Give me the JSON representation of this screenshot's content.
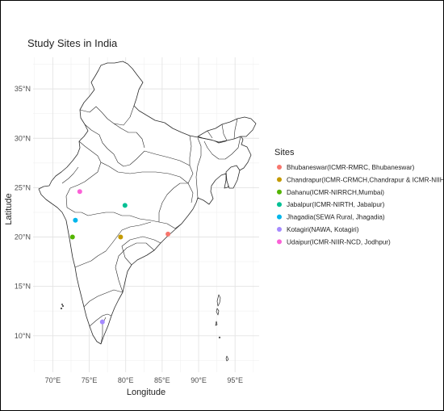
{
  "plot": {
    "title": "Study Sites in India",
    "xlabel": "Longitude",
    "ylabel": "Latitude"
  },
  "axes": {
    "x_ticks": [
      {
        "value": 70,
        "label": "70°E"
      },
      {
        "value": 75,
        "label": "75°E"
      },
      {
        "value": 80,
        "label": "80°E"
      },
      {
        "value": 85,
        "label": "85°E"
      },
      {
        "value": 90,
        "label": "90°E"
      },
      {
        "value": 95,
        "label": "95°E"
      }
    ],
    "y_ticks": [
      {
        "value": 10,
        "label": "10°N"
      },
      {
        "value": 15,
        "label": "15°N"
      },
      {
        "value": 20,
        "label": "20°N"
      },
      {
        "value": 25,
        "label": "25°N"
      },
      {
        "value": 30,
        "label": "30°N"
      },
      {
        "value": 35,
        "label": "35°N"
      }
    ],
    "xlim": [
      67.3,
      98.3
    ],
    "ylim": [
      6.3,
      38.2
    ]
  },
  "legend": {
    "title": "Sites",
    "position": "right"
  },
  "sites": [
    {
      "name": "Bhubaneswar(ICMR-RMRC, Bhubaneswar)",
      "lon": 85.8,
      "lat": 20.3,
      "color": "#f8766d"
    },
    {
      "name": "Chandrapur(ICMR-CRMCH,Chandrapur & ICMR-NIIH,Mumbai)",
      "lon": 79.3,
      "lat": 20.0,
      "color": "#c49a00"
    },
    {
      "name": "Dahanu(ICMR-NIRRCH,Mumbai)",
      "lon": 72.7,
      "lat": 20.0,
      "color": "#53b400"
    },
    {
      "name": "Jabalpur(ICMR-NIRTH, Jabalpur)",
      "lon": 79.9,
      "lat": 23.2,
      "color": "#00c094"
    },
    {
      "name": "Jhagadia(SEWA Rural, Jhagadia)",
      "lon": 73.1,
      "lat": 21.7,
      "color": "#00b6eb"
    },
    {
      "name": "Kotagiri(NAWA, Kotagiri)",
      "lon": 76.8,
      "lat": 11.4,
      "color": "#a58aff"
    },
    {
      "name": "Udaipur(ICMR-NIIR-NCD, Jodhpur)",
      "lon": 73.7,
      "lat": 24.6,
      "color": "#fb61d7"
    }
  ],
  "chart_data": {
    "type": "scatter",
    "title": "Study Sites in India",
    "xlabel": "Longitude",
    "ylabel": "Latitude",
    "xlim": [
      67.3,
      98.3
    ],
    "ylim": [
      6.3,
      38.2
    ],
    "grid": true,
    "legend_position": "right",
    "series": [
      {
        "name": "Bhubaneswar(ICMR-RMRC, Bhubaneswar)",
        "x": [
          85.8
        ],
        "y": [
          20.3
        ]
      },
      {
        "name": "Chandrapur(ICMR-CRMCH,Chandrapur & ICMR-NIIH,Mumbai)",
        "x": [
          79.3
        ],
        "y": [
          20.0
        ]
      },
      {
        "name": "Dahanu(ICMR-NIRRCH,Mumbai)",
        "x": [
          72.7
        ],
        "y": [
          20.0
        ]
      },
      {
        "name": "Jabalpur(ICMR-NIRTH, Jabalpur)",
        "x": [
          79.9
        ],
        "y": [
          23.2
        ]
      },
      {
        "name": "Jhagadia(SEWA Rural, Jhagadia)",
        "x": [
          73.1
        ],
        "y": [
          21.7
        ]
      },
      {
        "name": "Kotagiri(NAWA, Kotagiri)",
        "x": [
          76.8
        ],
        "y": [
          11.4
        ]
      },
      {
        "name": "Udaipur(ICMR-NIIR-NCD, Jodhpur)",
        "x": [
          73.7
        ],
        "y": [
          24.6
        ]
      }
    ]
  }
}
